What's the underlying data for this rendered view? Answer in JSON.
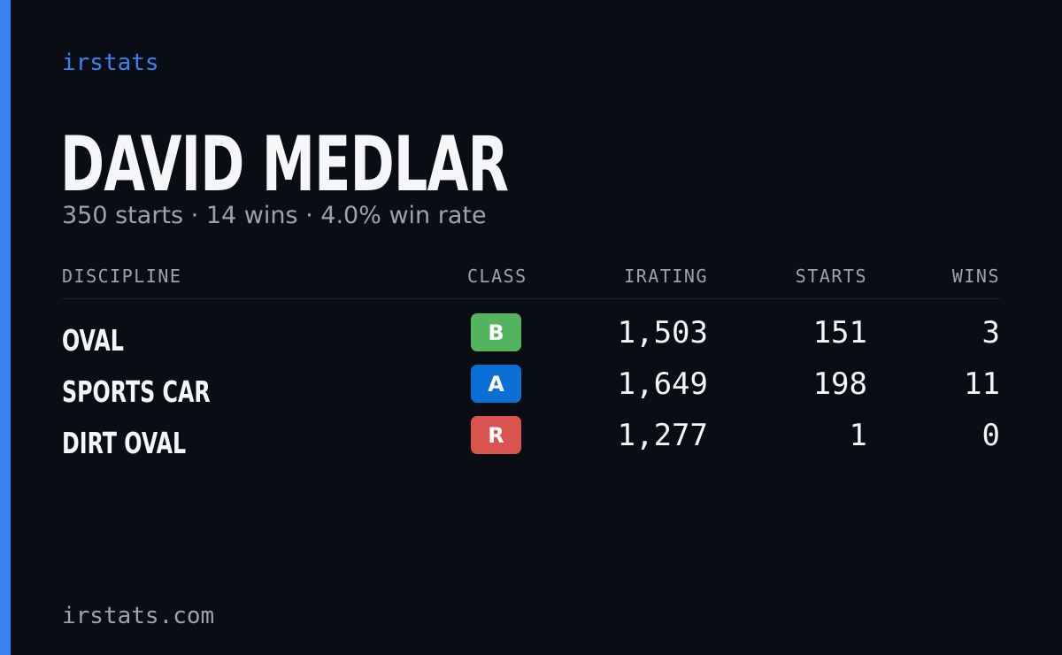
{
  "brand": "irstats",
  "driver": {
    "name": "DAVID MEDLAR",
    "summary": "350 starts · 14 wins · 4.0% win rate"
  },
  "table": {
    "headers": [
      "DISCIPLINE",
      "CLASS",
      "IRATING",
      "STARTS",
      "WINS"
    ],
    "rows": [
      {
        "discipline": "OVAL",
        "class": "B",
        "class_color": "#53b35e",
        "irating": "1,503",
        "starts": "151",
        "wins": "3"
      },
      {
        "discipline": "SPORTS CAR",
        "class": "A",
        "class_color": "#0b6fd6",
        "irating": "1,649",
        "starts": "198",
        "wins": "11"
      },
      {
        "discipline": "DIRT OVAL",
        "class": "R",
        "class_color": "#d9534f",
        "irating": "1,277",
        "starts": "1",
        "wins": "0"
      }
    ]
  },
  "footer": "irstats.com"
}
